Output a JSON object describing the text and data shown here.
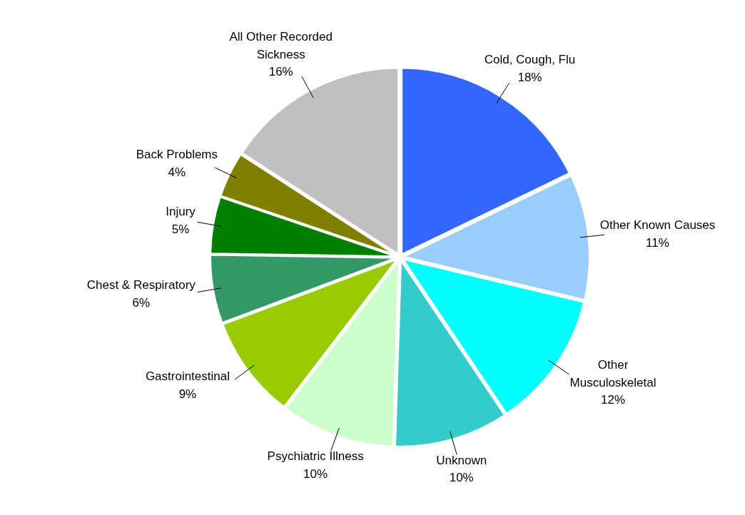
{
  "chart_data": {
    "type": "pie",
    "categories": [
      "Cold, Cough, Flu",
      "Other Known Causes",
      "Other Musculoskeletal",
      "Unknown",
      "Psychiatric Illness",
      "Gastrointestinal",
      "Chest & Respiratory",
      "Injury",
      "Back Problems",
      "All Other Recorded Sickness"
    ],
    "values": [
      18,
      11,
      12,
      10,
      10,
      9,
      6,
      5,
      4,
      16
    ],
    "value_labels": [
      "18%",
      "11%",
      "12%",
      "10%",
      "10%",
      "9%",
      "6%",
      "5%",
      "4%",
      "16%"
    ],
    "colors": [
      "#3366ff",
      "#99ccff",
      "#00ffff",
      "#33cccc",
      "#ccffcc",
      "#99cc00",
      "#339966",
      "#008000",
      "#808000",
      "#c0c0c0"
    ],
    "legend": false
  }
}
